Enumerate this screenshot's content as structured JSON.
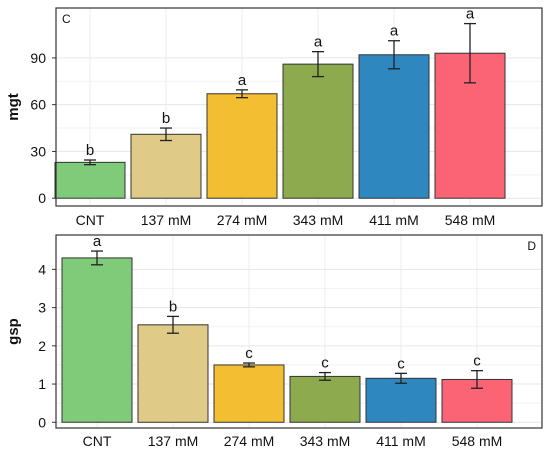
{
  "chart_data": [
    {
      "type": "bar",
      "panel_label": "C",
      "ylabel": "mgt",
      "categories": [
        "CNT",
        "137 mM",
        "274 mM",
        "343 mM",
        "411 mM",
        "548 mM"
      ],
      "values": [
        23,
        41,
        67,
        86,
        92,
        93
      ],
      "errors": [
        1.5,
        4,
        2.5,
        8,
        9,
        19
      ],
      "significance": [
        "b",
        "b",
        "a",
        "a",
        "a",
        "a"
      ],
      "colors": [
        "#7fcb7a",
        "#dfca87",
        "#f3be32",
        "#8daa4f",
        "#2f87c0",
        "#fb6474"
      ],
      "ylim": [
        -5,
        122
      ],
      "yticks": [
        0,
        30,
        60,
        90
      ],
      "grid": true
    },
    {
      "type": "bar",
      "panel_label": "D",
      "ylabel": "gsp",
      "categories": [
        "CNT",
        "137 mM",
        "274 mM",
        "343 mM",
        "411 mM",
        "548 mM"
      ],
      "values": [
        4.3,
        2.55,
        1.5,
        1.2,
        1.15,
        1.12
      ],
      "errors": [
        0.18,
        0.22,
        0.05,
        0.1,
        0.13,
        0.23
      ],
      "significance": [
        "a",
        "b",
        "c",
        "c",
        "c",
        "c"
      ],
      "colors": [
        "#7fcb7a",
        "#dfca87",
        "#f3be32",
        "#8daa4f",
        "#2f87c0",
        "#fb6474"
      ],
      "ylim": [
        -0.15,
        4.9
      ],
      "yticks": [
        0,
        1,
        2,
        3,
        4
      ],
      "grid": true
    }
  ]
}
